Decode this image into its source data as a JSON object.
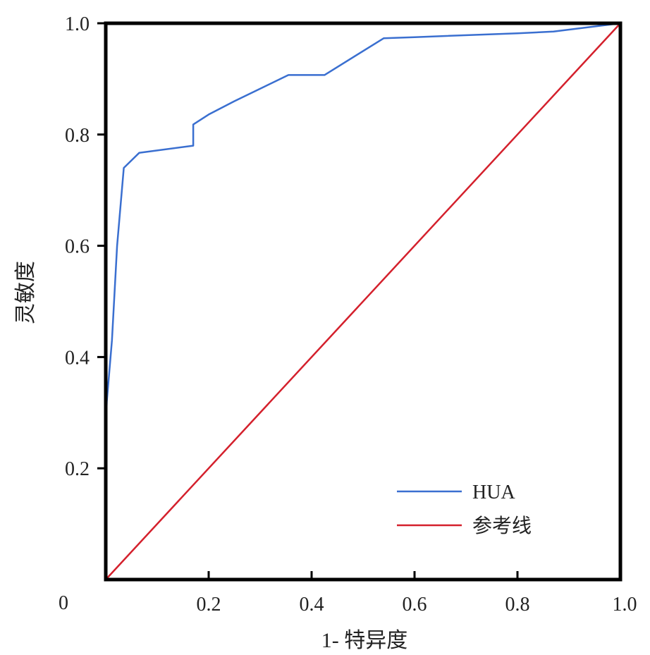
{
  "chart_data": {
    "type": "line",
    "title": "",
    "xlabel": "1- 特异度",
    "ylabel": "灵敏度",
    "xlim": [
      0,
      1
    ],
    "ylim": [
      0,
      1
    ],
    "x_ticks": [
      0.2,
      0.4,
      0.6,
      0.8,
      1.0
    ],
    "x_tick_labels": [
      "0.2",
      "0.4",
      "0.6",
      "0.8",
      "1.0"
    ],
    "y_ticks": [
      0.2,
      0.4,
      0.6,
      0.8,
      1.0
    ],
    "y_tick_labels": [
      "0.2",
      "0.4",
      "0.6",
      "0.8",
      "1.0"
    ],
    "origin_label": "0",
    "grid": false,
    "legend_position": "bottom-right",
    "series": [
      {
        "name": "HUA",
        "color": "#3a6fd0",
        "x": [
          0,
          0,
          0.002,
          0.012,
          0.022,
          0.035,
          0.065,
          0.17,
          0.17,
          0.2,
          0.25,
          0.355,
          0.425,
          0.54,
          0.6,
          0.8,
          0.87,
          1.0
        ],
        "y": [
          0,
          0.27,
          0.32,
          0.43,
          0.6,
          0.74,
          0.767,
          0.78,
          0.818,
          0.836,
          0.86,
          0.907,
          0.907,
          0.973,
          0.975,
          0.982,
          0.985,
          1.0
        ]
      },
      {
        "name": "参考线",
        "color": "#d4202c",
        "x": [
          0,
          1
        ],
        "y": [
          0,
          1
        ]
      }
    ]
  }
}
